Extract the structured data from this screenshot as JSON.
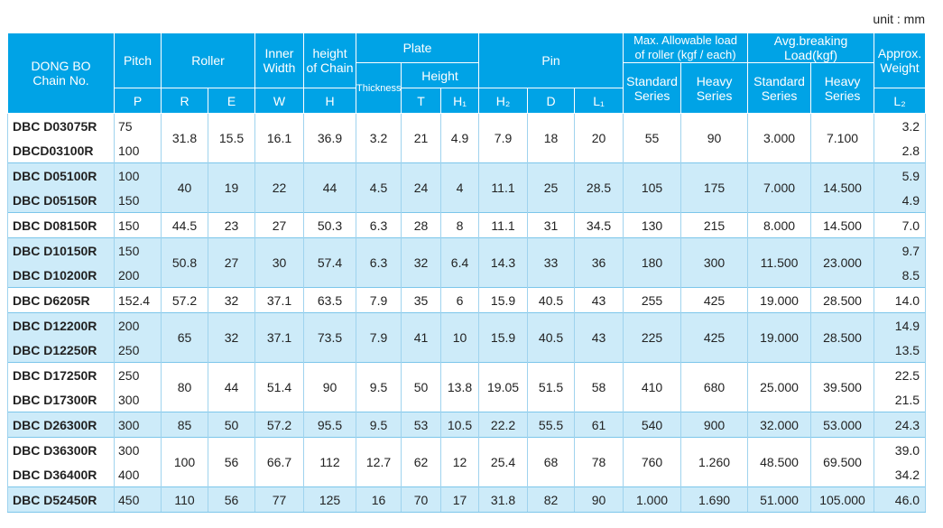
{
  "unit": "unit : mm",
  "header": {
    "rows": [
      [
        [
          "DONG BO",
          "Chain No."
        ],
        [
          "Pitch"
        ],
        [
          "Roller"
        ],
        [
          "Inner",
          "Width"
        ],
        [
          "height",
          "of Chain"
        ],
        [
          "Plate"
        ],
        [
          "Pin"
        ],
        [
          "Max. Allowable load",
          "of roller (kgf / each)"
        ],
        [
          "Avg.breaking",
          "Load(kgf)"
        ],
        [
          "Approx.",
          "Weight"
        ]
      ],
      [
        [
          "Thickness"
        ],
        [
          "Height"
        ],
        [
          "Standard",
          "Series"
        ],
        [
          "Heavy",
          "Series"
        ],
        [
          "Standard",
          "Series"
        ],
        [
          "Heavy",
          "Series"
        ]
      ],
      [
        [
          "P"
        ],
        [
          "R"
        ],
        [
          "E"
        ],
        [
          "W"
        ],
        [
          "H"
        ],
        [
          "T"
        ],
        [
          "H₁"
        ],
        [
          "H₂"
        ],
        [
          "D"
        ],
        [
          "L₁"
        ],
        [
          "L₂"
        ],
        [
          "(kgf/m)"
        ]
      ]
    ]
  },
  "table": {
    "groups": [
      {
        "chain_no": [
          "DBC D03075R",
          "DBCD03100R"
        ],
        "pitch": [
          "75",
          "100"
        ],
        "values": [
          "31.8",
          "15.5",
          "16.1",
          "36.9",
          "3.2",
          "21",
          "4.9",
          "7.9",
          "18",
          "20",
          "55",
          "90",
          "3.000",
          "7.100"
        ],
        "weight": [
          "3.2",
          "2.8"
        ]
      },
      {
        "chain_no": [
          "DBC D05100R",
          "DBC D05150R"
        ],
        "pitch": [
          "100",
          "150"
        ],
        "values": [
          "40",
          "19",
          "22",
          "44",
          "4.5",
          "24",
          "4",
          "11.1",
          "25",
          "28.5",
          "105",
          "175",
          "7.000",
          "14.500"
        ],
        "weight": [
          "5.9",
          "4.9"
        ]
      },
      {
        "chain_no": [
          "DBC D08150R"
        ],
        "pitch": [
          "150"
        ],
        "values": [
          "44.5",
          "23",
          "27",
          "50.3",
          "6.3",
          "28",
          "8",
          "11.1",
          "31",
          "34.5",
          "130",
          "215",
          "8.000",
          "14.500"
        ],
        "weight": [
          "7.0"
        ]
      },
      {
        "chain_no": [
          "DBC D10150R",
          "DBC D10200R"
        ],
        "pitch": [
          "150",
          "200"
        ],
        "values": [
          "50.8",
          "27",
          "30",
          "57.4",
          "6.3",
          "32",
          "6.4",
          "14.3",
          "33",
          "36",
          "180",
          "300",
          "11.500",
          "23.000"
        ],
        "weight": [
          "9.7",
          "8.5"
        ]
      },
      {
        "chain_no": [
          "DBC D6205R"
        ],
        "pitch": [
          "152.4"
        ],
        "values": [
          "57.2",
          "32",
          "37.1",
          "63.5",
          "7.9",
          "35",
          "6",
          "15.9",
          "40.5",
          "43",
          "255",
          "425",
          "19.000",
          "28.500"
        ],
        "weight": [
          "14.0"
        ]
      },
      {
        "chain_no": [
          "DBC D12200R",
          "DBC D12250R"
        ],
        "pitch": [
          "200",
          "250"
        ],
        "values": [
          "65",
          "32",
          "37.1",
          "73.5",
          "7.9",
          "41",
          "10",
          "15.9",
          "40.5",
          "43",
          "225",
          "425",
          "19.000",
          "28.500"
        ],
        "weight": [
          "14.9",
          "13.5"
        ]
      },
      {
        "chain_no": [
          "DBC D17250R",
          "DBC D17300R"
        ],
        "pitch": [
          "250",
          "300"
        ],
        "values": [
          "80",
          "44",
          "51.4",
          "90",
          "9.5",
          "50",
          "13.8",
          "19.05",
          "51.5",
          "58",
          "410",
          "680",
          "25.000",
          "39.500"
        ],
        "weight": [
          "22.5",
          "21.5"
        ]
      },
      {
        "chain_no": [
          "DBC D26300R"
        ],
        "pitch": [
          "300"
        ],
        "values": [
          "85",
          "50",
          "57.2",
          "95.5",
          "9.5",
          "53",
          "10.5",
          "22.2",
          "55.5",
          "61",
          "540",
          "900",
          "32.000",
          "53.000"
        ],
        "weight": [
          "24.3"
        ]
      },
      {
        "chain_no": [
          "DBC D36300R",
          "DBC D36400R"
        ],
        "pitch": [
          "300",
          "400"
        ],
        "values": [
          "100",
          "56",
          "66.7",
          "112",
          "12.7",
          "62",
          "12",
          "25.4",
          "68",
          "78",
          "760",
          "1.260",
          "48.500",
          "69.500"
        ],
        "weight": [
          "39.0",
          "34.2"
        ]
      },
      {
        "chain_no": [
          "DBC D52450R"
        ],
        "pitch": [
          "450"
        ],
        "values": [
          "110",
          "56",
          "77",
          "125",
          "16",
          "70",
          "17",
          "31.8",
          "82",
          "90",
          "1.000",
          "1.690",
          "51.000",
          "105.000"
        ],
        "weight": [
          "46.0"
        ]
      }
    ]
  }
}
